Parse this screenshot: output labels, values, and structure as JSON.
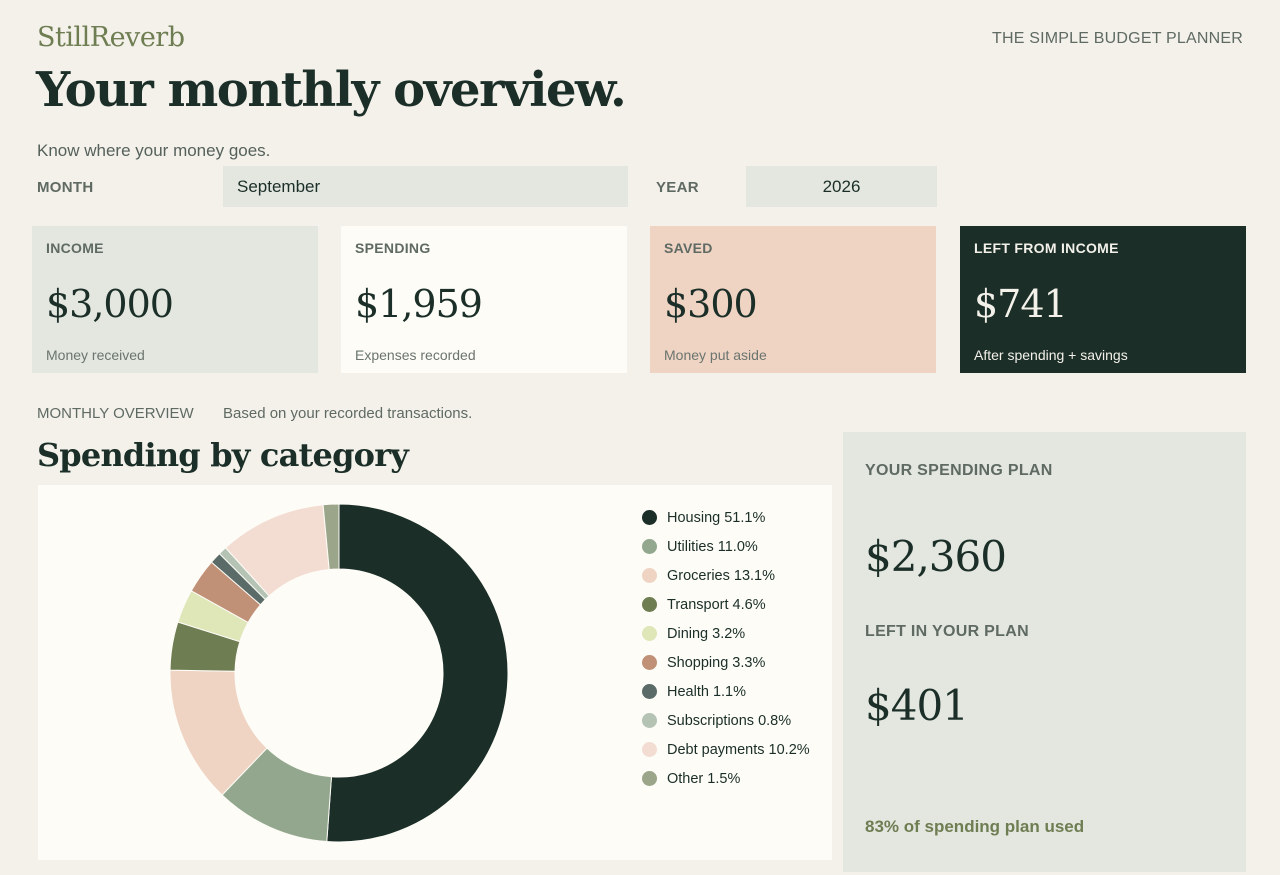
{
  "header": {
    "brand": "StillReverb",
    "tagline": "THE SIMPLE BUDGET PLANNER",
    "title": "Your monthly overview.",
    "subtitle": "Know where your money goes."
  },
  "filters": {
    "month_label": "MONTH",
    "month_value": "September",
    "year_label": "YEAR",
    "year_value": "2026"
  },
  "cards": [
    {
      "label": "INCOME",
      "value": "$3,000",
      "note": "Money received",
      "bg": "#e3e7e0"
    },
    {
      "label": "SPENDING",
      "value": "$1,959",
      "note": "Expenses recorded",
      "bg": "#fdfcf7"
    },
    {
      "label": "SAVED",
      "value": "$300",
      "note": "Money put aside",
      "bg": "#efd4c4"
    },
    {
      "label": "LEFT FROM INCOME",
      "value": "$741",
      "note": "After spending + savings",
      "bg": "#1b2e28"
    }
  ],
  "overview": {
    "label": "MONTHLY OVERVIEW",
    "note": "Based on your recorded transactions.",
    "section_title": "Spending by category"
  },
  "plan": {
    "spending_plan_label": "YOUR SPENDING PLAN",
    "spending_plan_value": "$2,360",
    "left_label": "LEFT IN YOUR PLAN",
    "left_value": "$401",
    "used_text": "83% of spending plan used"
  },
  "chart_data": {
    "type": "pie",
    "title": "Spending by category",
    "donut": true,
    "legend_position": "right",
    "categories": [
      "Housing",
      "Utilities",
      "Groceries",
      "Transport",
      "Dining",
      "Shopping",
      "Health",
      "Subscriptions",
      "Debt payments",
      "Other"
    ],
    "values": [
      51.1,
      11.0,
      13.1,
      4.6,
      3.2,
      3.3,
      1.1,
      0.8,
      10.2,
      1.5
    ],
    "labels": [
      "Housing 51.1%",
      "Utilities 11.0%",
      "Groceries 13.1%",
      "Transport 4.6%",
      "Dining 3.2%",
      "Shopping 3.3%",
      "Health 1.1%",
      "Subscriptions 0.8%",
      "Debt payments 10.2%",
      "Other 1.5%"
    ],
    "colors": [
      "#1b2e28",
      "#93a78e",
      "#efd4c4",
      "#6f7d52",
      "#dfe6b8",
      "#c19177",
      "#5b6b68",
      "#b4c3b3",
      "#f3ddd3",
      "#9ba58a"
    ]
  }
}
